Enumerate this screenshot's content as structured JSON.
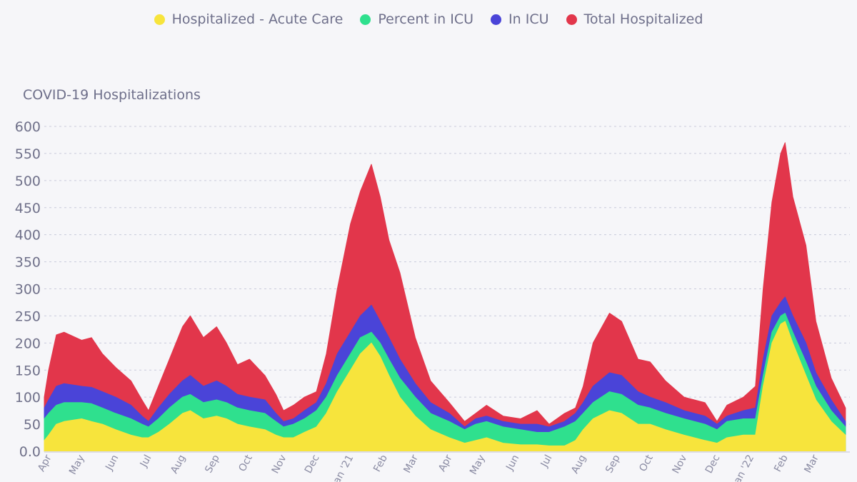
{
  "legend": [
    {
      "label": "Hospitalized - Acute Care",
      "color": "#f7e43c"
    },
    {
      "label": "Percent in ICU",
      "color": "#2fe08e"
    },
    {
      "label": "In ICU",
      "color": "#4a44d8"
    },
    {
      "label": "Total Hospitalized",
      "color": "#e2364b"
    }
  ],
  "chart_data": {
    "type": "area",
    "title": "COVID-19 Hospitalizations",
    "xlabel": "",
    "ylabel": "",
    "ylim": [
      0,
      600
    ],
    "yticks": [
      "0.0",
      "50",
      "100",
      "150",
      "200",
      "250",
      "300",
      "350",
      "400",
      "450",
      "500",
      "550",
      "600"
    ],
    "xlim": [
      "2020-03-28",
      "2022-04-01"
    ],
    "xticks": [
      {
        "date": "2020-04-01",
        "label": "Apr"
      },
      {
        "date": "2020-05-01",
        "label": "May"
      },
      {
        "date": "2020-06-01",
        "label": "Jun"
      },
      {
        "date": "2020-07-01",
        "label": "Jul"
      },
      {
        "date": "2020-08-01",
        "label": "Aug"
      },
      {
        "date": "2020-09-01",
        "label": "Sep"
      },
      {
        "date": "2020-10-01",
        "label": "Oct"
      },
      {
        "date": "2020-11-01",
        "label": "Nov"
      },
      {
        "date": "2020-12-01",
        "label": "Dec"
      },
      {
        "date": "2021-01-01",
        "label": "Jan '21"
      },
      {
        "date": "2021-02-01",
        "label": "Feb"
      },
      {
        "date": "2021-03-01",
        "label": "Mar"
      },
      {
        "date": "2021-04-01",
        "label": "Apr"
      },
      {
        "date": "2021-05-01",
        "label": "May"
      },
      {
        "date": "2021-06-01",
        "label": "Jun"
      },
      {
        "date": "2021-07-01",
        "label": "Jul"
      },
      {
        "date": "2021-08-01",
        "label": "Aug"
      },
      {
        "date": "2021-09-01",
        "label": "Sep"
      },
      {
        "date": "2021-10-01",
        "label": "Oct"
      },
      {
        "date": "2021-11-01",
        "label": "Nov"
      },
      {
        "date": "2021-12-01",
        "label": "Dec"
      },
      {
        "date": "2022-01-01",
        "label": "Jan '22"
      },
      {
        "date": "2022-02-01",
        "label": "Feb"
      },
      {
        "date": "2022-03-01",
        "label": "Mar"
      }
    ],
    "grid": true,
    "legend_position": "top",
    "x": [
      "2020-03-28",
      "2020-04-01",
      "2020-04-08",
      "2020-04-15",
      "2020-05-01",
      "2020-05-10",
      "2020-05-20",
      "2020-06-01",
      "2020-06-15",
      "2020-06-25",
      "2020-07-01",
      "2020-07-10",
      "2020-07-20",
      "2020-08-01",
      "2020-08-08",
      "2020-08-20",
      "2020-09-01",
      "2020-09-10",
      "2020-09-20",
      "2020-10-01",
      "2020-10-15",
      "2020-10-25",
      "2020-11-01",
      "2020-11-10",
      "2020-11-20",
      "2020-12-01",
      "2020-12-10",
      "2020-12-20",
      "2021-01-01",
      "2021-01-10",
      "2021-01-20",
      "2021-01-28",
      "2021-02-05",
      "2021-02-15",
      "2021-03-01",
      "2021-03-15",
      "2021-04-01",
      "2021-04-15",
      "2021-04-25",
      "2021-05-05",
      "2021-05-20",
      "2021-06-05",
      "2021-06-20",
      "2021-07-01",
      "2021-07-15",
      "2021-07-25",
      "2021-08-01",
      "2021-08-10",
      "2021-08-25",
      "2021-09-05",
      "2021-09-20",
      "2021-10-01",
      "2021-10-15",
      "2021-11-01",
      "2021-11-20",
      "2021-12-01",
      "2021-12-10",
      "2021-12-25",
      "2022-01-05",
      "2022-01-12",
      "2022-01-20",
      "2022-01-28",
      "2022-02-01",
      "2022-02-08",
      "2022-02-20",
      "2022-03-01",
      "2022-03-15",
      "2022-03-28"
    ],
    "series": [
      {
        "name": "Total Hospitalized",
        "color": "#e2364b",
        "values": [
          100,
          150,
          215,
          220,
          205,
          210,
          180,
          155,
          130,
          95,
          75,
          120,
          170,
          230,
          250,
          210,
          230,
          200,
          160,
          170,
          140,
          105,
          75,
          85,
          100,
          110,
          180,
          300,
          420,
          480,
          530,
          470,
          390,
          330,
          210,
          130,
          90,
          55,
          70,
          85,
          65,
          60,
          75,
          50,
          70,
          80,
          120,
          200,
          255,
          240,
          170,
          165,
          130,
          100,
          90,
          55,
          85,
          100,
          120,
          300,
          460,
          550,
          570,
          470,
          380,
          240,
          135,
          80
        ]
      },
      {
        "name": "In ICU",
        "color": "#4a44d8",
        "values": [
          80,
          95,
          120,
          125,
          120,
          118,
          110,
          100,
          85,
          65,
          55,
          80,
          105,
          130,
          140,
          120,
          130,
          120,
          105,
          100,
          95,
          70,
          55,
          60,
          75,
          90,
          125,
          180,
          220,
          250,
          270,
          240,
          210,
          170,
          125,
          90,
          70,
          45,
          60,
          65,
          55,
          50,
          50,
          45,
          55,
          70,
          90,
          120,
          145,
          140,
          110,
          100,
          90,
          75,
          65,
          50,
          65,
          75,
          80,
          170,
          250,
          275,
          285,
          250,
          200,
          145,
          95,
          55
        ]
      },
      {
        "name": "Percent in ICU",
        "color": "#2fe08e",
        "values": [
          60,
          70,
          85,
          90,
          90,
          88,
          80,
          70,
          60,
          50,
          45,
          60,
          80,
          100,
          105,
          90,
          95,
          90,
          80,
          75,
          70,
          55,
          45,
          50,
          60,
          75,
          100,
          140,
          180,
          210,
          220,
          200,
          170,
          135,
          100,
          70,
          55,
          40,
          50,
          55,
          45,
          40,
          35,
          35,
          45,
          55,
          70,
          90,
          110,
          105,
          85,
          80,
          70,
          60,
          50,
          40,
          55,
          60,
          60,
          140,
          220,
          250,
          255,
          220,
          165,
          120,
          75,
          45
        ]
      },
      {
        "name": "Hospitalized - Acute Care",
        "color": "#f7e43c",
        "values": [
          20,
          30,
          50,
          55,
          60,
          55,
          50,
          40,
          30,
          25,
          25,
          35,
          50,
          70,
          75,
          60,
          65,
          60,
          50,
          45,
          40,
          30,
          25,
          25,
          35,
          45,
          70,
          110,
          150,
          180,
          200,
          175,
          140,
          100,
          65,
          40,
          25,
          15,
          20,
          25,
          15,
          12,
          12,
          10,
          10,
          20,
          40,
          60,
          75,
          70,
          50,
          50,
          40,
          30,
          20,
          15,
          25,
          30,
          30,
          120,
          200,
          235,
          240,
          200,
          140,
          95,
          55,
          30
        ]
      }
    ]
  }
}
